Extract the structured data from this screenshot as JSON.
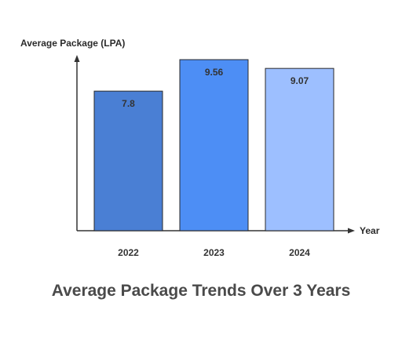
{
  "chart_data": {
    "type": "bar",
    "title": "Average Package Trends Over 3 Years",
    "xlabel": "Year",
    "ylabel": "Average Package (LPA)",
    "categories": [
      "2022",
      "2023",
      "2024"
    ],
    "values": [
      7.8,
      9.56,
      9.07
    ],
    "value_labels": [
      "7.8",
      "9.56",
      "9.07"
    ],
    "colors": [
      "#4a7fd4",
      "#4d8ef5",
      "#9dbfff"
    ],
    "grid": false,
    "legend": "none"
  }
}
